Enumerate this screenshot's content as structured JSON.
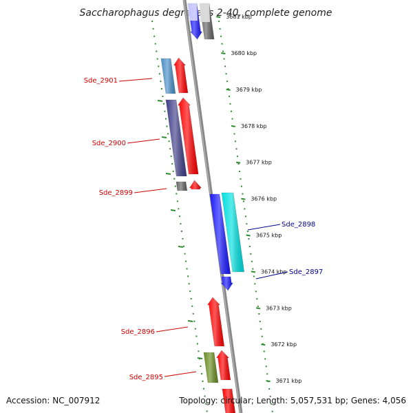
{
  "title": "Saccharophagus degradans 2-40, complete genome",
  "accession": "Accession: NC_007912",
  "summary": "Topology: circular; Length: 5,057,531 bp; Genes: 4,056",
  "ticks": [
    {
      "label": "3681 kbp",
      "kbp": 3681
    },
    {
      "label": "3680 kbp",
      "kbp": 3680
    },
    {
      "label": "3679 kbp",
      "kbp": 3679
    },
    {
      "label": "3678 kbp",
      "kbp": 3678
    },
    {
      "label": "3677 kbp",
      "kbp": 3677
    },
    {
      "label": "3676 kbp",
      "kbp": 3676
    },
    {
      "label": "3675 kbp",
      "kbp": 3675
    },
    {
      "label": "3674 kbp",
      "kbp": 3674
    },
    {
      "label": "3673 kbp",
      "kbp": 3673
    },
    {
      "label": "3672 kbp",
      "kbp": 3672
    },
    {
      "label": "3671 kbp",
      "kbp": 3671
    }
  ],
  "genes": [
    {
      "label": "Sde_2901",
      "side": "left",
      "color": "#4a90c8"
    },
    {
      "label": "Sde_2900",
      "side": "left",
      "color": "#3f3f8a"
    },
    {
      "label": "Sde_2899",
      "side": "left",
      "color": "#666666"
    },
    {
      "label": "Sde_2898",
      "side": "right",
      "color": "#00e0e0"
    },
    {
      "label": "Sde_2897",
      "side": "right",
      "color": "#1a1aff"
    },
    {
      "label": "Sde_2896",
      "side": "left",
      "color": "#ff0000"
    },
    {
      "label": "Sde_2895",
      "side": "left",
      "color": "#6b8e23"
    }
  ],
  "colors": {
    "forward_strand": "#ff0000",
    "reverse_strand": "#1a1aff",
    "backbone": "#888888",
    "tick_marks": "#2e8b2e",
    "left_label": "#cc0000",
    "right_label": "#00008b"
  }
}
